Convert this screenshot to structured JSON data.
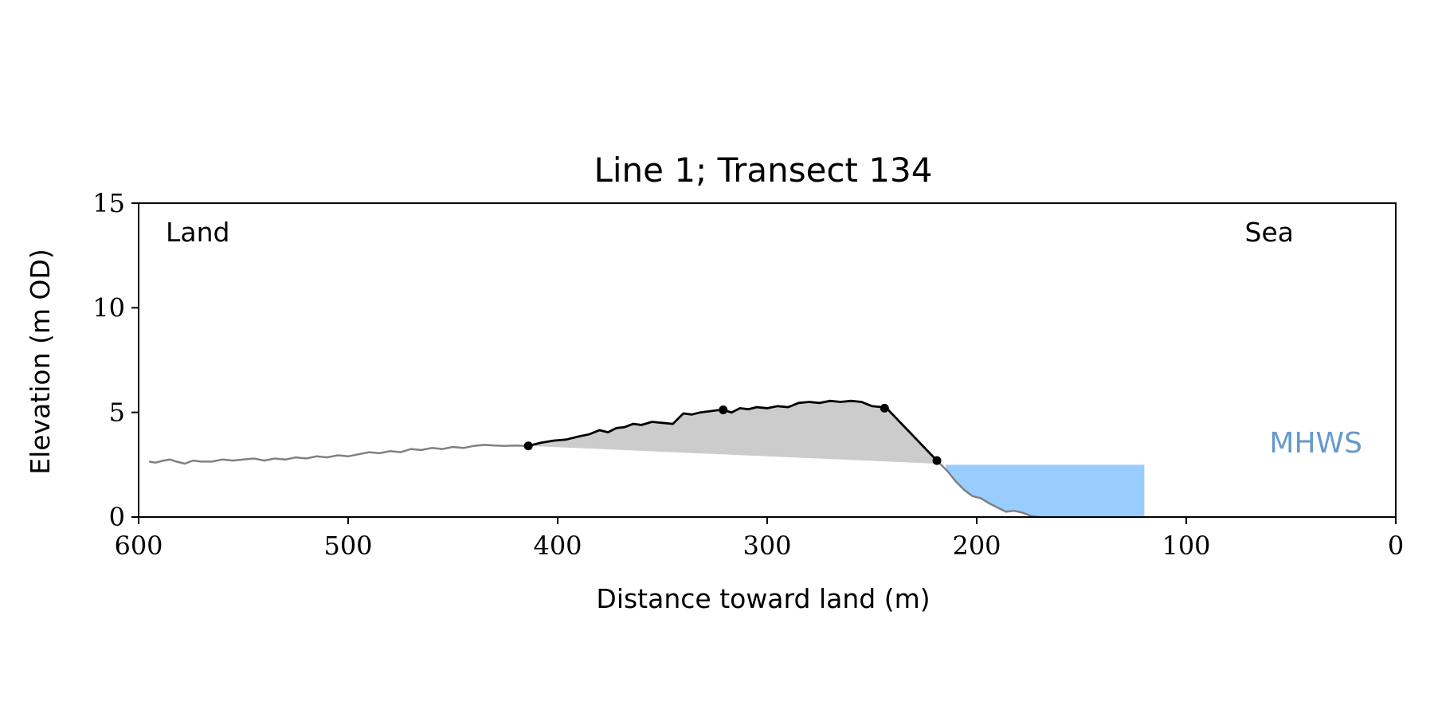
{
  "chart_data": {
    "type": "line",
    "title": "Line 1; Transect 134",
    "xlabel": "Distance toward land (m)",
    "ylabel": "Elevation (m OD)",
    "xlim": [
      600,
      0
    ],
    "ylim": [
      0,
      15
    ],
    "xticks": [
      600,
      500,
      400,
      300,
      200,
      100,
      0
    ],
    "yticks": [
      0,
      5,
      10,
      15
    ],
    "grid": false,
    "annotations": {
      "land": "Land",
      "sea": "Sea",
      "mhws": "MHWS"
    },
    "colors": {
      "profile_gray": "#808080",
      "profile_black": "#000000",
      "dune_fill": "#cccccc",
      "water_fill": "#99ccff",
      "mhws_text": "#6699cc"
    },
    "mhws_level": 2.5,
    "water_x_range": [
      120,
      215
    ],
    "series": [
      {
        "role": "profile-gray-left",
        "x": [
          595,
          592,
          588,
          585,
          582,
          578,
          574,
          570,
          565,
          560,
          555,
          550,
          545,
          540,
          535,
          530,
          525,
          520,
          515,
          510,
          505,
          500,
          495,
          490,
          485,
          480,
          475,
          470,
          465,
          460,
          455,
          450,
          445,
          440,
          435,
          430,
          425,
          420,
          415
        ],
        "y": [
          2.65,
          2.6,
          2.7,
          2.75,
          2.65,
          2.55,
          2.7,
          2.65,
          2.65,
          2.75,
          2.7,
          2.75,
          2.8,
          2.7,
          2.8,
          2.75,
          2.85,
          2.8,
          2.9,
          2.85,
          2.95,
          2.9,
          3.0,
          3.1,
          3.05,
          3.15,
          3.1,
          3.25,
          3.2,
          3.3,
          3.25,
          3.35,
          3.3,
          3.4,
          3.45,
          3.42,
          3.4,
          3.42,
          3.4
        ]
      },
      {
        "role": "profile-black-dune",
        "x": [
          414,
          408,
          402,
          396,
          390,
          385,
          380,
          376,
          372,
          368,
          364,
          360,
          355,
          350,
          345,
          340,
          336,
          332,
          328,
          324,
          321,
          317,
          313,
          309,
          305,
          300,
          295,
          290,
          285,
          280,
          275,
          270,
          265,
          260,
          255,
          250,
          245,
          243,
          219
        ],
        "y": [
          3.4,
          3.55,
          3.65,
          3.7,
          3.85,
          3.95,
          4.15,
          4.05,
          4.25,
          4.3,
          4.45,
          4.4,
          4.55,
          4.5,
          4.45,
          4.95,
          4.9,
          5.0,
          5.05,
          5.1,
          5.12,
          5.0,
          5.2,
          5.15,
          5.25,
          5.2,
          5.3,
          5.25,
          5.45,
          5.5,
          5.45,
          5.55,
          5.5,
          5.55,
          5.5,
          5.3,
          5.25,
          5.2,
          2.7
        ]
      },
      {
        "role": "profile-gray-right",
        "x": [
          219,
          214,
          210,
          206,
          202,
          198,
          194,
          190,
          186,
          182,
          178,
          174,
          170
        ],
        "y": [
          2.7,
          2.2,
          1.7,
          1.3,
          1.0,
          0.9,
          0.65,
          0.45,
          0.25,
          0.3,
          0.2,
          0.05,
          0.0
        ]
      }
    ],
    "markers": {
      "x": [
        414,
        321,
        244,
        219
      ],
      "y": [
        3.4,
        5.12,
        5.2,
        2.7
      ]
    },
    "dune_base": {
      "x": [
        414,
        219
      ],
      "y": [
        3.4,
        2.55
      ]
    }
  }
}
